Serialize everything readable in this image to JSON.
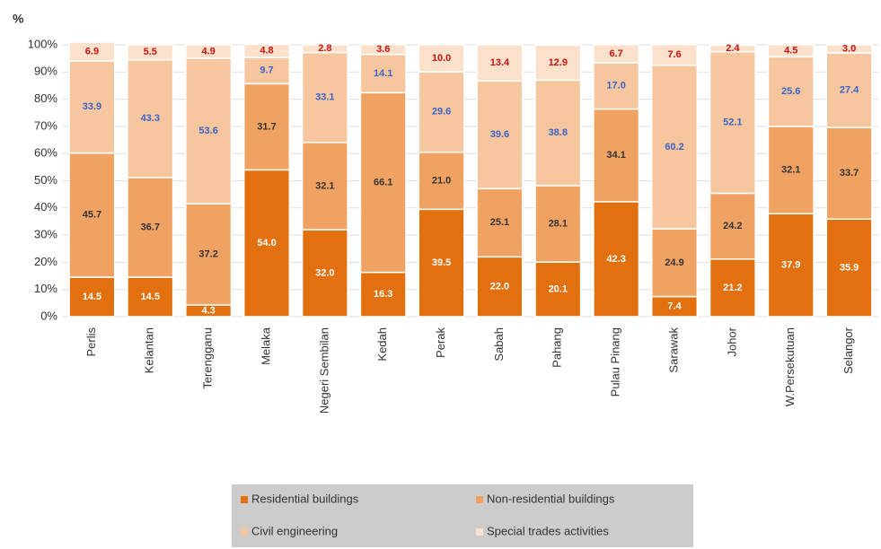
{
  "chart_data": {
    "type": "stacked_bar",
    "y_label": "%",
    "categories": [
      "Perlis",
      "Kelantan",
      "Terengganu",
      "Melaka",
      "Negeri Sembilan",
      "Kedah",
      "Perak",
      "Sabah",
      "Pahang",
      "Pulau Pinang",
      "Sarawak",
      "Johor",
      "W.Persekutuan",
      "Selangor"
    ],
    "series": [
      {
        "name": "Residential buildings",
        "color": "#e2700f",
        "label_color": "#ffffff",
        "values": [
          14.5,
          14.5,
          4.3,
          54.0,
          32.0,
          16.3,
          39.5,
          22.0,
          20.1,
          42.3,
          7.4,
          21.2,
          37.9,
          35.9
        ],
        "value_labels": [
          "14.5",
          "14.5",
          "4.3",
          "54.0",
          "32.0",
          "16.3",
          "39.5",
          "22.0",
          "20.1",
          "42.3",
          "7.4",
          "21.2",
          "37.9",
          "35.9"
        ]
      },
      {
        "name": "Non-residential buildings",
        "color": "#f0a263",
        "label_color": "#333333",
        "values": [
          45.7,
          36.7,
          37.2,
          31.7,
          32.1,
          66.1,
          21.0,
          25.1,
          28.1,
          34.1,
          24.9,
          24.2,
          32.1,
          33.7
        ],
        "value_labels": [
          "45.7",
          "36.7",
          "37.2",
          "31.7",
          "32.1",
          "66.1",
          "21.0",
          "25.1",
          "28.1",
          "34.1",
          "24.9",
          "24.2",
          "32.1",
          "33.7"
        ]
      },
      {
        "name": "Civil engineering",
        "color": "#f6c79f",
        "label_color": "#3a62c8",
        "values": [
          33.9,
          43.3,
          53.6,
          9.7,
          33.1,
          14.1,
          29.6,
          39.6,
          38.8,
          17.0,
          60.2,
          52.1,
          25.6,
          27.4
        ],
        "value_labels": [
          "33.9",
          "43.3",
          "53.6",
          "9.7",
          "33.1",
          "14.1",
          "29.6",
          "39.6",
          "38.8",
          "17.0",
          "60.2",
          "52.1",
          "25.6",
          "27.4"
        ]
      },
      {
        "name": "Special trades activities",
        "color": "#fbe1cb",
        "label_color": "#cc1111",
        "values": [
          6.9,
          5.5,
          4.9,
          4.8,
          2.8,
          3.6,
          10.0,
          13.4,
          12.9,
          6.7,
          7.6,
          2.4,
          4.5,
          3.0
        ],
        "value_labels": [
          "6.9",
          "5.5",
          "4.9",
          "4.8",
          "2.8",
          "3.6",
          "10.0",
          "13.4",
          "12.9",
          "6.7",
          "7.6",
          "2.4",
          "4.5",
          "3.0"
        ]
      }
    ],
    "ylim": [
      0,
      100
    ],
    "yticks": [
      {
        "value": 0,
        "label": "0%"
      },
      {
        "value": 10,
        "label": "10%"
      },
      {
        "value": 20,
        "label": "20%"
      },
      {
        "value": 30,
        "label": "30%"
      },
      {
        "value": 40,
        "label": "40%"
      },
      {
        "value": 50,
        "label": "50%"
      },
      {
        "value": 60,
        "label": "60%"
      },
      {
        "value": 70,
        "label": "70%"
      },
      {
        "value": 80,
        "label": "80%"
      },
      {
        "value": 90,
        "label": "90%"
      },
      {
        "value": 100,
        "label": "100%"
      }
    ],
    "grid": true
  }
}
